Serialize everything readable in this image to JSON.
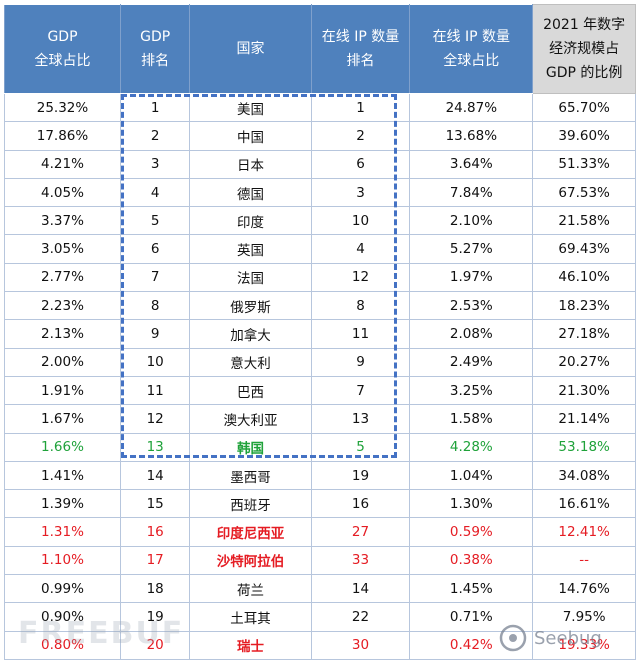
{
  "table": {
    "headers": [
      [
        "GDP",
        "全球占比"
      ],
      [
        "GDP",
        "排名"
      ],
      [
        "国家"
      ],
      [
        "在线 IP 数量",
        "排名"
      ],
      [
        "在线 IP 数量",
        "全球占比"
      ],
      [
        "2021 年数字",
        "经济规模占",
        "GDP 的比例"
      ]
    ],
    "rows": [
      {
        "style": "normal",
        "cells": [
          "25.32%",
          "1",
          "美国",
          "1",
          "24.87%",
          "65.70%"
        ]
      },
      {
        "style": "normal",
        "cells": [
          "17.86%",
          "2",
          "中国",
          "2",
          "13.68%",
          "39.60%"
        ]
      },
      {
        "style": "normal",
        "cells": [
          "4.21%",
          "3",
          "日本",
          "6",
          "3.64%",
          "51.33%"
        ]
      },
      {
        "style": "normal",
        "cells": [
          "4.05%",
          "4",
          "德国",
          "3",
          "7.84%",
          "67.53%"
        ]
      },
      {
        "style": "normal",
        "cells": [
          "3.37%",
          "5",
          "印度",
          "10",
          "2.10%",
          "21.58%"
        ]
      },
      {
        "style": "normal",
        "cells": [
          "3.05%",
          "6",
          "英国",
          "4",
          "5.27%",
          "69.43%"
        ]
      },
      {
        "style": "normal",
        "cells": [
          "2.77%",
          "7",
          "法国",
          "12",
          "1.97%",
          "46.10%"
        ]
      },
      {
        "style": "normal",
        "cells": [
          "2.23%",
          "8",
          "俄罗斯",
          "8",
          "2.53%",
          "18.23%"
        ]
      },
      {
        "style": "normal",
        "cells": [
          "2.13%",
          "9",
          "加拿大",
          "11",
          "2.08%",
          "27.18%"
        ]
      },
      {
        "style": "normal",
        "cells": [
          "2.00%",
          "10",
          "意大利",
          "9",
          "2.49%",
          "20.27%"
        ]
      },
      {
        "style": "normal",
        "cells": [
          "1.91%",
          "11",
          "巴西",
          "7",
          "3.25%",
          "21.30%"
        ]
      },
      {
        "style": "normal",
        "cells": [
          "1.67%",
          "12",
          "澳大利亚",
          "13",
          "1.58%",
          "21.14%"
        ]
      },
      {
        "style": "green",
        "cells": [
          "1.66%",
          "13",
          "韩国",
          "5",
          "4.28%",
          "53.18%"
        ]
      },
      {
        "style": "normal",
        "cells": [
          "1.41%",
          "14",
          "墨西哥",
          "19",
          "1.04%",
          "34.08%"
        ]
      },
      {
        "style": "normal",
        "cells": [
          "1.39%",
          "15",
          "西班牙",
          "16",
          "1.30%",
          "16.61%"
        ]
      },
      {
        "style": "red",
        "cells": [
          "1.31%",
          "16",
          "印度尼西亚",
          "27",
          "0.59%",
          "12.41%"
        ]
      },
      {
        "style": "red",
        "cells": [
          "1.10%",
          "17",
          "沙特阿拉伯",
          "33",
          "0.38%",
          "--"
        ]
      },
      {
        "style": "normal",
        "cells": [
          "0.99%",
          "18",
          "荷兰",
          "14",
          "1.45%",
          "14.76%"
        ]
      },
      {
        "style": "normal",
        "cells": [
          "0.90%",
          "19",
          "土耳其",
          "22",
          "0.71%",
          "7.95%"
        ]
      },
      {
        "style": "red",
        "cells": [
          "0.80%",
          "20",
          "瑞士",
          "30",
          "0.42%",
          "19.33%"
        ]
      }
    ]
  },
  "watermarks": {
    "left": "FREEBUF",
    "right": "Seebug"
  },
  "colors": {
    "header_blue": "#4f81bd",
    "header_gray": "#d9d9d9",
    "highlight_green": "#1fa23a",
    "highlight_red": "#e51c23",
    "dashed_box": "#4472c4"
  }
}
